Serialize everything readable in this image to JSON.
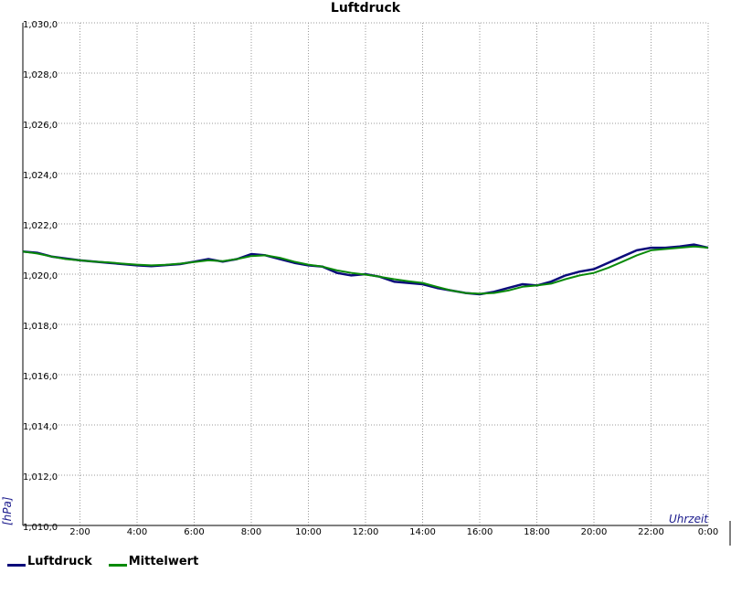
{
  "colors": {
    "series_primary": "#0b0b7a",
    "series_mean": "#0a8a0a",
    "grid": "#9a9a9a",
    "axis": "#000000"
  },
  "legend": [
    {
      "label": "Luftdruck",
      "color": "#0b0b7a"
    },
    {
      "label": "Mittelwert",
      "color": "#0a8a0a"
    }
  ],
  "chart_data": {
    "type": "line",
    "title": "Luftdruck",
    "ylabel": "[hPa]",
    "xlabel": "Uhrzeit",
    "xlim": [
      0,
      24
    ],
    "ylim": [
      1010,
      1030
    ],
    "grid": true,
    "legend_position": "bottom-left",
    "x_ticks": [
      {
        "value": 2,
        "label": "2:00"
      },
      {
        "value": 4,
        "label": "4:00"
      },
      {
        "value": 6,
        "label": "6:00"
      },
      {
        "value": 8,
        "label": "8:00"
      },
      {
        "value": 10,
        "label": "10:00"
      },
      {
        "value": 12,
        "label": "12:00"
      },
      {
        "value": 14,
        "label": "14:00"
      },
      {
        "value": 16,
        "label": "16:00"
      },
      {
        "value": 18,
        "label": "18:00"
      },
      {
        "value": 20,
        "label": "20:00"
      },
      {
        "value": 22,
        "label": "22:00"
      },
      {
        "value": 24,
        "label": "0:00"
      }
    ],
    "y_ticks": [
      {
        "value": 1010,
        "label": "1,010,0"
      },
      {
        "value": 1012,
        "label": "1,012,0"
      },
      {
        "value": 1014,
        "label": "1,014,0"
      },
      {
        "value": 1016,
        "label": "1,016,0"
      },
      {
        "value": 1018,
        "label": "1,018,0"
      },
      {
        "value": 1020,
        "label": "1,020,0"
      },
      {
        "value": 1022,
        "label": "1,022,0"
      },
      {
        "value": 1024,
        "label": "1,024,0"
      },
      {
        "value": 1026,
        "label": "1,026,0"
      },
      {
        "value": 1028,
        "label": "1,028,0"
      },
      {
        "value": 1030,
        "label": "1,030,0"
      }
    ],
    "series": [
      {
        "name": "Luftdruck",
        "x": [
          0,
          0.5,
          1,
          1.5,
          2,
          2.5,
          3,
          3.5,
          4,
          4.5,
          5,
          5.5,
          6,
          6.5,
          7,
          7.5,
          8,
          8.5,
          9,
          9.5,
          10,
          10.5,
          11,
          11.5,
          12,
          12.5,
          13,
          13.5,
          14,
          14.5,
          15,
          15.5,
          16,
          16.5,
          17,
          17.5,
          18,
          18.5,
          19,
          19.5,
          20,
          20.5,
          21,
          21.5,
          22,
          22.5,
          23,
          23.5,
          24
        ],
        "values": [
          1020.9,
          1020.85,
          1020.7,
          1020.62,
          1020.55,
          1020.5,
          1020.45,
          1020.4,
          1020.35,
          1020.32,
          1020.36,
          1020.4,
          1020.5,
          1020.6,
          1020.5,
          1020.6,
          1020.8,
          1020.75,
          1020.6,
          1020.45,
          1020.35,
          1020.3,
          1020.05,
          1019.95,
          1020.0,
          1019.9,
          1019.7,
          1019.65,
          1019.6,
          1019.45,
          1019.35,
          1019.25,
          1019.2,
          1019.3,
          1019.45,
          1019.6,
          1019.55,
          1019.7,
          1019.95,
          1020.1,
          1020.2,
          1020.45,
          1020.7,
          1020.95,
          1021.05,
          1021.05,
          1021.1,
          1021.18,
          1021.05
        ]
      },
      {
        "name": "Mittelwert",
        "x": [
          0,
          0.5,
          1,
          1.5,
          2,
          2.5,
          3,
          3.5,
          4,
          4.5,
          5,
          5.5,
          6,
          6.5,
          7,
          7.5,
          8,
          8.5,
          9,
          9.5,
          10,
          10.5,
          11,
          11.5,
          12,
          12.5,
          13,
          13.5,
          14,
          14.5,
          15,
          15.5,
          16,
          16.5,
          17,
          17.5,
          18,
          18.5,
          19,
          19.5,
          20,
          20.5,
          21,
          21.5,
          22,
          22.5,
          23,
          23.5,
          24
        ],
        "values": [
          1020.9,
          1020.82,
          1020.7,
          1020.6,
          1020.55,
          1020.5,
          1020.47,
          1020.42,
          1020.38,
          1020.35,
          1020.37,
          1020.42,
          1020.48,
          1020.55,
          1020.52,
          1020.6,
          1020.72,
          1020.75,
          1020.65,
          1020.5,
          1020.38,
          1020.3,
          1020.15,
          1020.05,
          1019.98,
          1019.9,
          1019.8,
          1019.72,
          1019.65,
          1019.5,
          1019.35,
          1019.25,
          1019.22,
          1019.25,
          1019.35,
          1019.5,
          1019.55,
          1019.62,
          1019.8,
          1019.95,
          1020.05,
          1020.25,
          1020.5,
          1020.75,
          1020.95,
          1021.0,
          1021.05,
          1021.1,
          1021.05
        ]
      }
    ]
  }
}
